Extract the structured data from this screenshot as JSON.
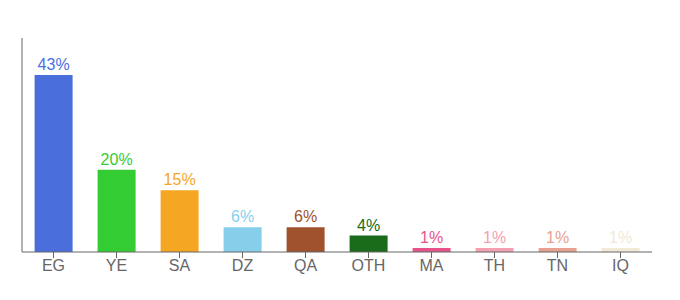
{
  "chart_data": {
    "type": "bar",
    "categories": [
      "EG",
      "YE",
      "SA",
      "DZ",
      "QA",
      "OTH",
      "MA",
      "TH",
      "TN",
      "IQ"
    ],
    "values": [
      43,
      20,
      15,
      6,
      6,
      4,
      1,
      1,
      1,
      1
    ],
    "value_labels": [
      "43%",
      "20%",
      "15%",
      "6%",
      "6%",
      "4%",
      "1%",
      "1%",
      "1%",
      "1%"
    ],
    "data_labels": true,
    "colors": [
      "#4a6fdc",
      "#33cc33",
      "#f5a623",
      "#87ceeb",
      "#a0522d",
      "#1a6b1a",
      "#e8528a",
      "#f4a0b0",
      "#e8a090",
      "#f0ead6"
    ],
    "ylim": [
      0,
      52
    ],
    "tick_labels": "x",
    "grid": false
  }
}
